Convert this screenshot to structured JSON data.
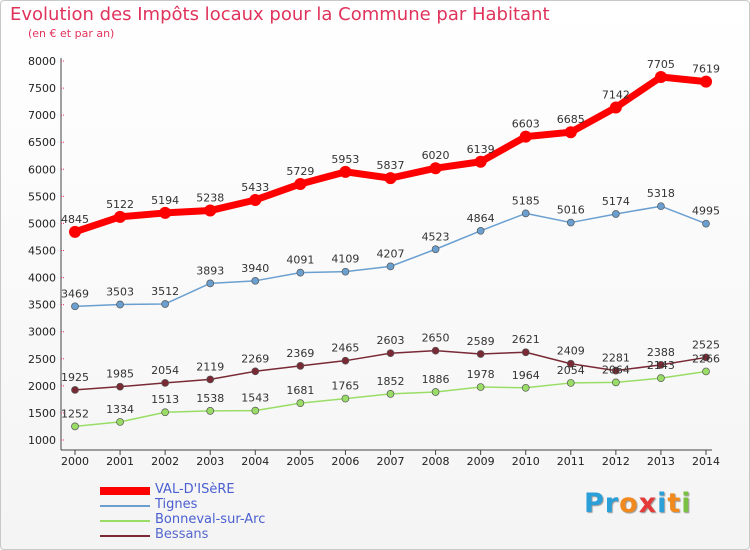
{
  "chart_data": {
    "type": "line",
    "title": "Evolution des Impôts locaux pour la Commune par Habitant",
    "subtitle": "(en € et par an)",
    "x": [
      "2000",
      "2001",
      "2002",
      "2003",
      "2004",
      "2005",
      "2006",
      "2007",
      "2008",
      "2009",
      "2010",
      "2011",
      "2012",
      "2013",
      "2014"
    ],
    "y_ticks": [
      "1000",
      "1500",
      "2000",
      "2500",
      "3000",
      "3500",
      "4000",
      "4500",
      "5000",
      "5500",
      "6000",
      "6500",
      "7000",
      "7500",
      "8000"
    ],
    "ylim": [
      1000,
      8000
    ],
    "grid": false,
    "legend_position": "bottom-left",
    "series": [
      {
        "name": "VAL-D'ISèRE",
        "color": "#ff0000",
        "values": [
          4845,
          5122,
          5194,
          5238,
          5433,
          5729,
          5953,
          5837,
          6020,
          6139,
          6603,
          6685,
          7142,
          7705,
          7619
        ]
      },
      {
        "name": "Tignes",
        "color": "#6a9fd0",
        "values": [
          3469,
          3503,
          3512,
          3893,
          3940,
          4091,
          4109,
          4207,
          4523,
          4864,
          5185,
          5016,
          5174,
          5318,
          4995
        ]
      },
      {
        "name": "Bonneval-sur-Arc",
        "color": "#99dd66",
        "values": [
          1252,
          1334,
          1513,
          1538,
          1543,
          1681,
          1765,
          1852,
          1886,
          1978,
          1964,
          2054,
          2064,
          2143,
          2266
        ]
      },
      {
        "name": "Bessans",
        "color": "#7a2a34",
        "values": [
          1925,
          1985,
          2054,
          2119,
          2269,
          2369,
          2465,
          2603,
          2650,
          2589,
          2621,
          2409,
          2281,
          2388,
          2525
        ]
      }
    ]
  },
  "logo": {
    "letters": [
      "P",
      "r",
      "o",
      "x",
      "i",
      "t",
      "i"
    ],
    "colors": [
      "#2a9fd8",
      "#2a9fd8",
      "#f08a1e",
      "#e53a3a",
      "#2a9fd8",
      "#f08a1e",
      "#7ac143"
    ]
  }
}
